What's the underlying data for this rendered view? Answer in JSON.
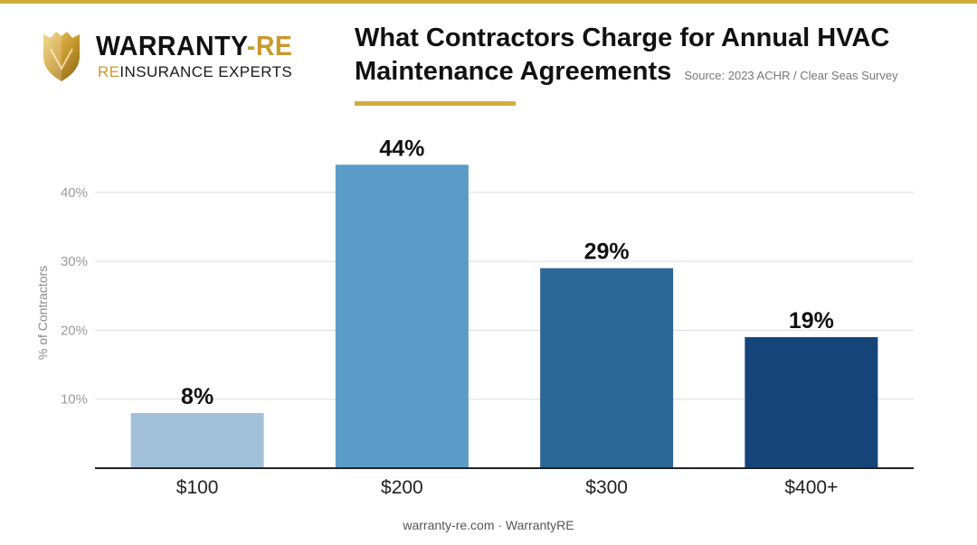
{
  "brand": {
    "name_prefix": "WARRANTY",
    "name_suffix": "RE",
    "tagline_prefix": "RE",
    "tagline_suffix": "INSURANCE EXPERTS",
    "gold": "#c99a2e"
  },
  "source_note": "Source: 2023 ACHR / Clear Seas Survey",
  "footer": "warranty-re.com · WarrantyRE",
  "chart_data": {
    "type": "bar",
    "title": "What Contractors Charge for Annual HVAC Maintenance Agreements",
    "xlabel": "",
    "ylabel": "% of Contractors",
    "categories": [
      "$100",
      "$200",
      "$300",
      "$400+"
    ],
    "values": [
      8,
      44,
      29,
      19
    ],
    "value_labels": [
      "8%",
      "44%",
      "29%",
      "19%"
    ],
    "colors": [
      "#a3c0da",
      "#5b9bc8",
      "#2c6796",
      "#154578"
    ],
    "ylim": [
      0,
      45
    ],
    "yticks": [
      10,
      20,
      30,
      40
    ],
    "ytick_labels": [
      "10%",
      "20%",
      "30%",
      "40%"
    ],
    "grid": true,
    "legend": "none"
  }
}
